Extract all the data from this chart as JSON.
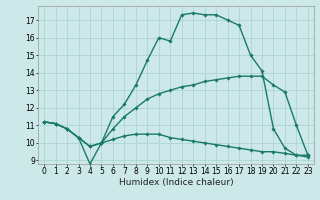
{
  "xlabel": "Humidex (Indice chaleur)",
  "background_color": "#cce8e8",
  "grid_color": "#aed4d4",
  "line_color": "#1a7a6a",
  "series": [
    {
      "x": [
        0,
        1,
        2,
        3,
        4,
        5,
        6,
        7,
        8,
        9,
        10,
        11,
        12,
        13,
        14,
        15,
        16,
        17,
        18,
        19,
        20,
        21,
        22,
        23
      ],
      "y": [
        11.2,
        11.1,
        10.8,
        10.3,
        9.8,
        10.0,
        10.2,
        10.4,
        10.5,
        10.5,
        10.5,
        10.3,
        10.2,
        10.1,
        10.0,
        9.9,
        9.8,
        9.7,
        9.6,
        9.5,
        9.5,
        9.4,
        9.3,
        9.2
      ]
    },
    {
      "x": [
        0,
        1,
        2,
        3,
        4,
        5,
        6,
        7,
        8,
        9,
        10,
        11,
        12,
        13,
        14,
        15,
        16,
        17,
        18,
        19,
        20,
        21,
        22,
        23
      ],
      "y": [
        11.2,
        11.1,
        10.8,
        10.3,
        9.8,
        10.0,
        10.8,
        11.5,
        12.0,
        12.5,
        12.8,
        13.0,
        13.2,
        13.3,
        13.5,
        13.6,
        13.7,
        13.8,
        13.8,
        13.8,
        13.3,
        12.9,
        11.0,
        9.3
      ]
    },
    {
      "x": [
        0,
        1,
        2,
        3,
        4,
        5,
        6,
        7,
        8,
        9,
        10,
        11,
        12,
        13,
        14,
        15,
        16,
        17,
        18,
        19,
        20,
        21,
        22,
        23
      ],
      "y": [
        11.2,
        11.1,
        10.8,
        10.3,
        8.8,
        10.0,
        11.5,
        12.2,
        13.3,
        14.7,
        16.0,
        15.8,
        17.3,
        17.4,
        17.3,
        17.3,
        17.0,
        16.7,
        15.0,
        14.1,
        10.8,
        9.7,
        9.3,
        9.3
      ]
    }
  ],
  "xlim": [
    -0.5,
    23.5
  ],
  "ylim": [
    8.8,
    17.8
  ],
  "yticks": [
    9,
    10,
    11,
    12,
    13,
    14,
    15,
    16,
    17
  ],
  "xticks": [
    0,
    1,
    2,
    3,
    4,
    5,
    6,
    7,
    8,
    9,
    10,
    11,
    12,
    13,
    14,
    15,
    16,
    17,
    18,
    19,
    20,
    21,
    22,
    23
  ],
  "marker": "D",
  "marker_size": 1.8,
  "line_width": 1.0,
  "xlabel_fontsize": 6.5,
  "tick_fontsize": 5.5
}
